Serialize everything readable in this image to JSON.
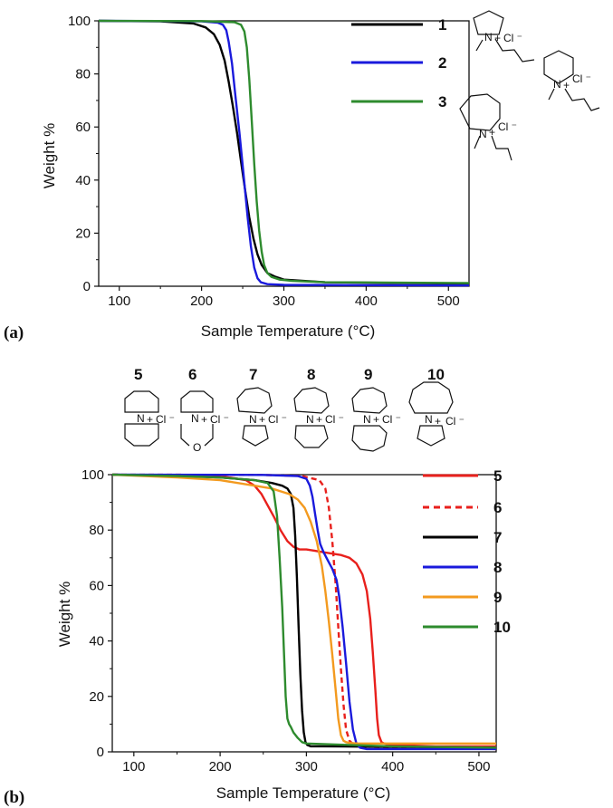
{
  "chart_data": [
    {
      "panel_label": "(a)",
      "type": "line",
      "xlabel": "Sample Temperature (°C)",
      "ylabel": "Weight %",
      "xlim": [
        75,
        525
      ],
      "ylim": [
        0,
        100
      ],
      "xticks": [
        100,
        200,
        300,
        400,
        500
      ],
      "yticks": [
        0,
        20,
        40,
        60,
        80,
        100
      ],
      "grid": false,
      "legend_position": "top-right",
      "series": [
        {
          "name": "1",
          "color": "#000000",
          "dash": false,
          "x": [
            75,
            150,
            190,
            205,
            215,
            222,
            228,
            233,
            238,
            243,
            248,
            253,
            258,
            263,
            268,
            273,
            280,
            290,
            300,
            350,
            525
          ],
          "y": [
            100,
            99.8,
            99,
            97.5,
            95,
            91,
            85,
            77,
            68,
            58,
            47,
            36,
            26,
            18,
            12,
            8,
            5,
            3.5,
            2.5,
            1.5,
            1
          ]
        },
        {
          "name": "2",
          "color": "#1a1adc",
          "dash": false,
          "x": [
            75,
            200,
            220,
            226,
            230,
            233,
            237,
            241,
            246,
            251,
            256,
            260,
            264,
            268,
            272,
            280,
            300,
            525
          ],
          "y": [
            100,
            99.8,
            99.3,
            98.5,
            96.5,
            92,
            84,
            72,
            58,
            42,
            26,
            15,
            7,
            3,
            1.5,
            0.8,
            0.5,
            0.3
          ]
        },
        {
          "name": "3",
          "color": "#2e8b2e",
          "dash": false,
          "x": [
            75,
            200,
            240,
            248,
            252,
            255,
            258,
            261,
            264,
            267,
            270,
            273,
            276,
            280,
            285,
            295,
            310,
            350,
            525
          ],
          "y": [
            100,
            99.9,
            99.5,
            98.5,
            96,
            90,
            78,
            62,
            46,
            32,
            21,
            13,
            8,
            5,
            3.5,
            2.5,
            2,
            1.5,
            1.2
          ]
        }
      ],
      "compounds": [
        {
          "label": "1",
          "cation": "pyrrolidinium",
          "anion": "Cl⁻",
          "charge": "+"
        },
        {
          "label": "2",
          "cation": "piperidinium",
          "anion": "Cl⁻",
          "charge": "+"
        },
        {
          "label": "3",
          "cation": "azepanium",
          "anion": "Cl⁻",
          "charge": "+"
        }
      ]
    },
    {
      "panel_label": "(b)",
      "type": "line",
      "xlabel": "Sample Temperature (°C)",
      "ylabel": "Weight %",
      "xlim": [
        75,
        520
      ],
      "ylim": [
        0,
        100
      ],
      "xticks": [
        100,
        200,
        300,
        400,
        500
      ],
      "yticks": [
        0,
        20,
        40,
        60,
        80,
        100
      ],
      "grid": false,
      "legend_position": "top-right",
      "series": [
        {
          "name": "5",
          "color": "#e8201c",
          "dash": false,
          "x": [
            75,
            200,
            230,
            240,
            248,
            255,
            262,
            270,
            278,
            285,
            292,
            300,
            310,
            320,
            330,
            340,
            350,
            358,
            365,
            370,
            374,
            377,
            380,
            382,
            384,
            387,
            390,
            400,
            450,
            520
          ],
          "y": [
            100,
            99.5,
            98,
            96,
            93,
            89,
            85,
            80,
            76,
            74,
            73,
            73,
            72.5,
            72,
            71.5,
            71,
            70,
            68,
            64,
            58,
            48,
            36,
            22,
            12,
            6,
            3.5,
            3,
            2.5,
            2,
            2
          ]
        },
        {
          "name": "6",
          "color": "#e8201c",
          "dash": true,
          "x": [
            75,
            250,
            295,
            315,
            322,
            326,
            330,
            334,
            337,
            340,
            343,
            346,
            350,
            355,
            360,
            400,
            520
          ],
          "y": [
            100,
            99.9,
            99.5,
            98,
            95,
            88,
            76,
            60,
            45,
            30,
            17,
            8,
            4,
            2.5,
            2,
            1.5,
            1
          ]
        },
        {
          "name": "7",
          "color": "#000000",
          "dash": false,
          "x": [
            75,
            150,
            200,
            240,
            260,
            272,
            278,
            282,
            285,
            287,
            289,
            291,
            293,
            295,
            297,
            299,
            301,
            305,
            320,
            400,
            520
          ],
          "y": [
            100,
            99.5,
            99,
            98,
            97,
            96,
            95,
            93,
            88,
            78,
            63,
            45,
            28,
            15,
            7,
            3.5,
            2.5,
            2,
            2,
            1.8,
            1.5
          ]
        },
        {
          "name": "8",
          "color": "#1a1adc",
          "dash": false,
          "x": [
            75,
            250,
            290,
            300,
            304,
            307,
            310,
            313,
            316,
            320,
            325,
            330,
            335,
            338,
            342,
            346,
            350,
            354,
            358,
            362,
            370,
            520
          ],
          "y": [
            100,
            99.9,
            99.5,
            98.5,
            96,
            92,
            86,
            80,
            75,
            72,
            69,
            66,
            62,
            56,
            45,
            32,
            18,
            8,
            3,
            1.5,
            1,
            1
          ]
        },
        {
          "name": "9",
          "color": "#f39a1f",
          "dash": false,
          "x": [
            75,
            150,
            200,
            240,
            260,
            280,
            290,
            298,
            305,
            312,
            318,
            322,
            326,
            330,
            334,
            337,
            340,
            343,
            346,
            350,
            360,
            400,
            520
          ],
          "y": [
            100,
            99,
            98,
            96,
            95,
            93,
            91,
            88,
            83,
            76,
            67,
            58,
            47,
            35,
            22,
            12,
            6,
            4,
            3.5,
            3.2,
            3,
            3,
            3
          ]
        },
        {
          "name": "10",
          "color": "#2e8b2e",
          "dash": false,
          "x": [
            75,
            150,
            200,
            240,
            255,
            262,
            266,
            269,
            272,
            274,
            276,
            278,
            280,
            282,
            285,
            290,
            295,
            300,
            350,
            400,
            520
          ],
          "y": [
            100,
            99.5,
            99,
            98,
            97,
            94,
            85,
            70,
            52,
            36,
            20,
            12,
            10,
            9,
            7,
            5,
            3.5,
            3,
            2.5,
            2,
            1.5
          ]
        }
      ],
      "compounds": [
        {
          "label": "5",
          "cation": "spiro piperidinium–piperidinium",
          "anion": "Cl⁻",
          "charge": "+"
        },
        {
          "label": "6",
          "cation": "spiro piperidinium–morpholinium",
          "anion": "Cl⁻",
          "charge": "+",
          "heteroatom": "O"
        },
        {
          "label": "7",
          "cation": "spiro azepanium–pyrrolidinium",
          "anion": "Cl⁻",
          "charge": "+"
        },
        {
          "label": "8",
          "cation": "spiro azepanium–piperidinium",
          "anion": "Cl⁻",
          "charge": "+"
        },
        {
          "label": "9",
          "cation": "spiro azepanium–azepanium",
          "anion": "Cl⁻",
          "charge": "+"
        },
        {
          "label": "10",
          "cation": "spiro azocanium–pyrrolidinium",
          "anion": "Cl⁻",
          "charge": "+"
        }
      ]
    }
  ],
  "structure_text": {
    "nitrogen": "N",
    "oxygen": "O",
    "plus": "+",
    "anion": "Cl ⁻"
  }
}
